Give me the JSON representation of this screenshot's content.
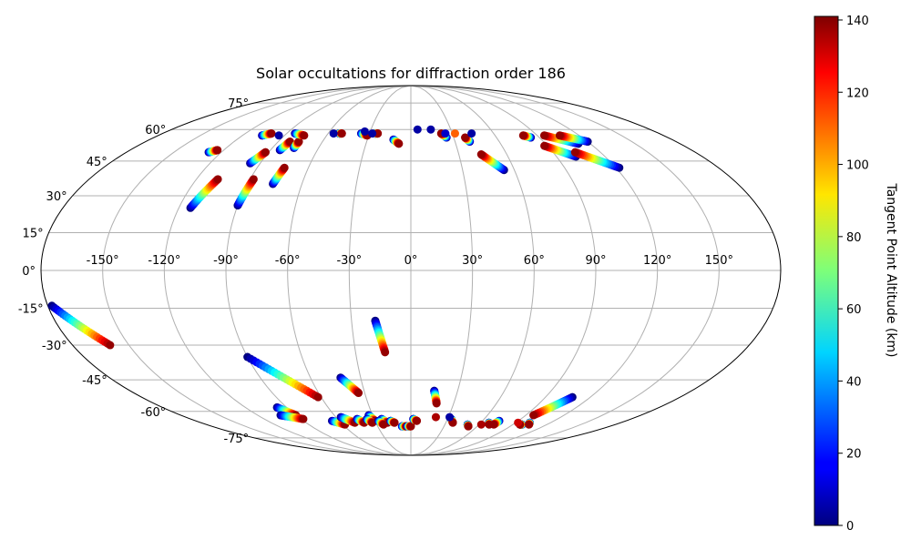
{
  "chart_data": {
    "type": "scatter",
    "projection": "mollweide",
    "title": "Solar occultations for diffraction order 186",
    "lon_ticks": [
      -150,
      -120,
      -90,
      -60,
      -30,
      0,
      30,
      60,
      90,
      120,
      150
    ],
    "lon_tick_labels": [
      "-150°",
      "-120°",
      "-90°",
      "-60°",
      "-30°",
      "0°",
      "30°",
      "60°",
      "90°",
      "120°",
      "150°"
    ],
    "lat_ticks": [
      75,
      60,
      45,
      30,
      15,
      0,
      -15,
      -30,
      -45,
      -60,
      -75
    ],
    "lat_tick_labels": [
      "75°",
      "60°",
      "45°",
      "30°",
      "15°",
      "0°",
      "-15°",
      "-30°",
      "-45°",
      "-60°",
      "-75°"
    ],
    "grid": true,
    "colorbar": {
      "label": "Tangent Point Altitude (km)",
      "min": 0,
      "max": 141,
      "colormap": "jet",
      "ticks": [
        0,
        20,
        40,
        60,
        80,
        100,
        120,
        140
      ],
      "tick_labels": [
        "0",
        "20",
        "40",
        "60",
        "80",
        "100",
        "120",
        "140"
      ]
    },
    "tracks": [
      {
        "lon0": -178,
        "lat0": -14,
        "lon1": -160,
        "lat1": -30
      },
      {
        "lon0": -114,
        "lat0": 25,
        "lon1": -108,
        "lat1": 37
      },
      {
        "lon0": -90,
        "lat0": 26,
        "lon1": -88,
        "lat1": 37
      },
      {
        "lon0": -76,
        "lat0": 35,
        "lon1": -74,
        "lat1": 42
      },
      {
        "lon0": -96,
        "lat0": 44,
        "lon1": -92,
        "lat1": 49
      },
      {
        "lon0": -84,
        "lat0": 50,
        "lon1": -82,
        "lat1": 54
      },
      {
        "lon0": -76,
        "lat0": 51,
        "lon1": -76,
        "lat1": 54
      },
      {
        "lon0": -106,
        "lat0": 57,
        "lon1": -101,
        "lat1": 58
      },
      {
        "lon0": -84,
        "lat0": 58,
        "lon1": -76,
        "lat1": 57
      },
      {
        "lon0": -52,
        "lat0": 58,
        "lon1": -50,
        "lat1": 58
      },
      {
        "lon0": -36,
        "lat0": 58,
        "lon1": -31,
        "lat1": 57
      },
      {
        "lon0": -26,
        "lat0": 58,
        "lon1": -24,
        "lat1": 58
      },
      {
        "lon0": -12,
        "lat0": 55,
        "lon1": -8,
        "lat1": 53
      },
      {
        "lon0": 25,
        "lat0": 56,
        "lon1": 22,
        "lat1": 58
      },
      {
        "lon0": 40,
        "lat0": 54,
        "lon1": 38,
        "lat1": 56
      },
      {
        "lon0": 54,
        "lat0": 41,
        "lon1": 44,
        "lat1": 48
      },
      {
        "lon0": 102,
        "lat0": 47,
        "lon1": 88,
        "lat1": 52
      },
      {
        "lon0": 122,
        "lat0": 42,
        "lon1": 104,
        "lat1": 49
      },
      {
        "lon0": 112,
        "lat0": 53,
        "lon1": 95,
        "lat1": 57
      },
      {
        "lon0": 120,
        "lat0": 54,
        "lon1": 106,
        "lat1": 57
      },
      {
        "lon0": 84,
        "lat0": 56,
        "lon1": 80,
        "lat1": 57
      },
      {
        "lon0": -128,
        "lat0": 49,
        "lon1": -124,
        "lat1": 50
      },
      {
        "lon0": -18,
        "lat0": -20,
        "lon1": -14,
        "lat1": -33
      },
      {
        "lon0": -90,
        "lat0": -35,
        "lon1": -62,
        "lat1": -53
      },
      {
        "lon0": -42,
        "lat0": -44,
        "lon1": -34,
        "lat1": -51
      },
      {
        "lon0": 15,
        "lat0": -50,
        "lon1": 18,
        "lat1": -56
      },
      {
        "lon0": 108,
        "lat0": -53,
        "lon1": 96,
        "lat1": -62
      },
      {
        "lon0": -97,
        "lat0": -58,
        "lon1": -90,
        "lat1": -62
      },
      {
        "lon0": -102,
        "lat0": -62,
        "lon1": -88,
        "lat1": -64
      },
      {
        "lon0": -66,
        "lat0": -65,
        "lon1": -58,
        "lat1": -67
      },
      {
        "lon0": -56,
        "lat0": -63,
        "lon1": -48,
        "lat1": -66
      },
      {
        "lon0": -44,
        "lat0": -64,
        "lon1": -40,
        "lat1": -66
      },
      {
        "lon0": -33,
        "lat0": -62,
        "lon1": -30,
        "lat1": -65
      },
      {
        "lon0": -36,
        "lat0": -64,
        "lon1": -33,
        "lat1": -66
      },
      {
        "lon0": -24,
        "lat0": -64,
        "lon1": -20,
        "lat1": -66
      },
      {
        "lon0": -27,
        "lat0": -65,
        "lon1": -24,
        "lat1": -67
      },
      {
        "lon0": -17,
        "lat0": -65,
        "lon1": -14,
        "lat1": -66
      },
      {
        "lon0": -8,
        "lat0": -68,
        "lon1": -4,
        "lat1": -68
      },
      {
        "lon0": -3,
        "lat0": -68,
        "lon1": 0,
        "lat1": -68
      },
      {
        "lon0": 2,
        "lat0": -64,
        "lon1": 5,
        "lat1": -65
      },
      {
        "lon0": 33,
        "lat0": -64,
        "lon1": 36,
        "lat1": -66
      },
      {
        "lon0": 50,
        "lat0": -67,
        "lon1": 52,
        "lat1": -68
      },
      {
        "lon0": 67,
        "lat0": -66,
        "lon1": 69,
        "lat1": -67
      },
      {
        "lon0": 74,
        "lat0": -65,
        "lon1": 73,
        "lat1": -67
      },
      {
        "lon0": 98,
        "lat0": -67,
        "lon1": 96,
        "lat1": -67
      },
      {
        "lon0": 102,
        "lat0": -66,
        "lon1": 104,
        "lat1": -67
      }
    ],
    "points": [
      {
        "lon": -94,
        "lat": 57,
        "alt": 5
      },
      {
        "lon": -56,
        "lat": 58,
        "alt": 5
      },
      {
        "lon": -34,
        "lat": 59,
        "alt": 5
      },
      {
        "lon": -28,
        "lat": 58,
        "alt": 5
      },
      {
        "lon": 5,
        "lat": 60,
        "alt": 5
      },
      {
        "lon": 15,
        "lat": 60,
        "alt": 5
      },
      {
        "lon": 25,
        "lat": 58,
        "alt": 10
      },
      {
        "lon": 32,
        "lat": 58,
        "alt": 110
      },
      {
        "lon": 44,
        "lat": 58,
        "alt": 5
      },
      {
        "lon": 20,
        "lat": -63,
        "alt": 135
      },
      {
        "lon": 31,
        "lat": -63,
        "alt": 5
      },
      {
        "lon": 62,
        "lat": -67,
        "alt": 135
      },
      {
        "lon": 92,
        "lat": -66,
        "alt": 130
      }
    ]
  }
}
